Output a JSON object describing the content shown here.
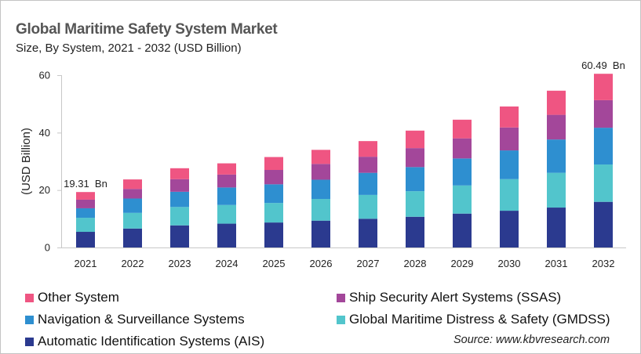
{
  "chart_data": {
    "type": "bar",
    "stacked": true,
    "title": "Global Maritime Safety System Market",
    "subtitle": "Size, By System, 2021 - 2032 (USD Billion)",
    "xlabel": "",
    "ylabel": "(USD Billion)",
    "ylim": [
      0,
      60
    ],
    "yticks": [
      0,
      20,
      40,
      60
    ],
    "grid": false,
    "legend_position": "bottom",
    "categories": [
      "2021",
      "2022",
      "2023",
      "2024",
      "2025",
      "2026",
      "2027",
      "2028",
      "2029",
      "2030",
      "2031",
      "2032"
    ],
    "series": [
      {
        "name": "Automatic Identification Systems (AIS)",
        "color": "#2B3A8F",
        "values": [
          5.45,
          6.6,
          7.7,
          8.3,
          8.7,
          9.35,
          10.0,
          10.7,
          11.8,
          12.8,
          13.9,
          15.9
        ]
      },
      {
        "name": "Global Maritime Distress & Safety (GMDSS)",
        "color": "#52C5CC",
        "values": [
          4.9,
          5.45,
          6.4,
          6.5,
          6.8,
          7.55,
          8.3,
          8.9,
          9.8,
          11.0,
          12.1,
          13.0
        ]
      },
      {
        "name": "Navigation & Surveillance Systems",
        "color": "#2E8FD0",
        "values": [
          3.3,
          5.0,
          5.3,
          6.1,
          6.5,
          6.7,
          7.7,
          8.4,
          9.4,
          10.0,
          11.6,
          12.8
        ]
      },
      {
        "name": "Ship Security Alert Systems (SSAS)",
        "color": "#A3479A",
        "values": [
          3.0,
          3.35,
          4.4,
          4.5,
          5.0,
          5.5,
          5.6,
          6.6,
          7.0,
          8.0,
          8.6,
          9.6
        ]
      },
      {
        "name": "Other System",
        "color": "#EF5582",
        "values": [
          2.66,
          3.3,
          3.8,
          3.9,
          4.5,
          4.9,
          5.45,
          6.1,
          6.5,
          7.3,
          8.4,
          9.19
        ]
      }
    ],
    "annotations": [
      {
        "category": "2021",
        "text": "19.31  Bn",
        "value": 19.31
      },
      {
        "category": "2032",
        "text": "60.49  Bn",
        "value": 60.49
      }
    ],
    "source": "Source: www.kbvresearch.com"
  },
  "legend": [
    {
      "label": "Other System",
      "color": "#EF5582"
    },
    {
      "label": "Ship Security Alert Systems (SSAS)",
      "color": "#A3479A"
    },
    {
      "label": "Navigation & Surveillance Systems",
      "color": "#2E8FD0"
    },
    {
      "label": "Global Maritime Distress & Safety (GMDSS)",
      "color": "#52C5CC"
    },
    {
      "label": "Automatic Identification Systems (AIS)",
      "color": "#2B3A8F"
    }
  ]
}
